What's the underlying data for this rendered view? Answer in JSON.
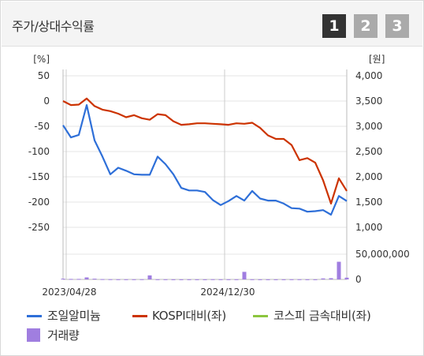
{
  "header": {
    "title": "주가/상대수익률",
    "pages": [
      "1",
      "2",
      "3"
    ],
    "active_page": "1"
  },
  "colors": {
    "stock": "#2e6fd8",
    "kospi": "#cc3300",
    "sector": "#8cc63f",
    "volume": "#a07ee0",
    "active_btn": "#333333",
    "inactive_btn": "#aaaaaa",
    "grid": "#e6e6e6"
  },
  "chart_data": {
    "type": "line",
    "left_axis": {
      "unit": "[%]",
      "ticks": [
        50,
        0,
        -50,
        -100,
        -150,
        -200,
        -250
      ],
      "ylim": [
        -250,
        50
      ]
    },
    "right_axis": {
      "unit": "[원]",
      "ticks": [
        "4,000",
        "3,500",
        "3,000",
        "2,500",
        "2,000",
        "1,500",
        "1,000"
      ],
      "ylim": [
        1000,
        4000
      ]
    },
    "volume_axis": {
      "ticks": [
        "50,000,000",
        "0"
      ],
      "ylim": [
        0,
        50000000
      ]
    },
    "x_labels": [
      "2023/04/28",
      "2024/12/30"
    ],
    "series": [
      {
        "name": "조일알미늄",
        "axis": "left",
        "values": [
          -48,
          -72,
          -67,
          -8,
          -78,
          -110,
          -145,
          -132,
          -138,
          -145,
          -146,
          -146,
          -110,
          -125,
          -145,
          -172,
          -177,
          -177,
          -180,
          -196,
          -206,
          -198,
          -188,
          -197,
          -178,
          -193,
          -197,
          -197,
          -203,
          -212,
          -213,
          -219,
          -218,
          -216,
          -225,
          -188,
          -198
        ]
      },
      {
        "name": "KOSPI대비(좌)",
        "axis": "left",
        "values": [
          0,
          -8,
          -7,
          5,
          -10,
          -17,
          -20,
          -25,
          -32,
          -28,
          -34,
          -37,
          -26,
          -28,
          -40,
          -47,
          -46,
          -44,
          -44,
          -45,
          -46,
          -47,
          -44,
          -45,
          -43,
          -53,
          -68,
          -75,
          -75,
          -87,
          -117,
          -113,
          -122,
          -157,
          -203,
          -153,
          -178
        ]
      },
      {
        "name": "코스피 금속대비(좌)",
        "axis": "left",
        "values": []
      }
    ],
    "volume": {
      "name": "거래량",
      "values": [
        1500000,
        1000000,
        1000000,
        4000000,
        1500000,
        600000,
        400000,
        300000,
        300000,
        300000,
        400000,
        8000000,
        300000,
        300000,
        200000,
        200000,
        200000,
        200000,
        200000,
        400000,
        300000,
        300000,
        300000,
        15000000,
        300000,
        200000,
        200000,
        200000,
        200000,
        300000,
        300000,
        200000,
        200000,
        2000000,
        2500000,
        35000000,
        3500000
      ]
    }
  },
  "legend": [
    {
      "label": "조일알미늄",
      "kind": "line",
      "color_key": "stock"
    },
    {
      "label": "KOSPI대비(좌)",
      "kind": "line",
      "color_key": "kospi"
    },
    {
      "label": "코스피 금속대비(좌)",
      "kind": "line",
      "color_key": "sector"
    },
    {
      "label": "거래량",
      "kind": "box",
      "color_key": "volume"
    }
  ]
}
